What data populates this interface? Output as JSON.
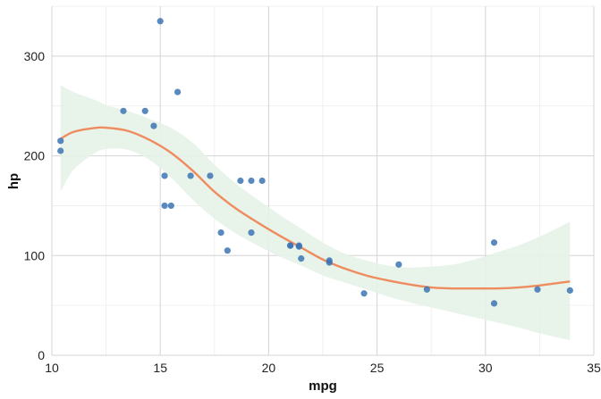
{
  "chart_data": {
    "type": "scatter",
    "title": "",
    "xlabel": "mpg",
    "ylabel": "hp",
    "xlim": [
      10,
      35
    ],
    "ylim": [
      0,
      350
    ],
    "x_ticks": [
      10,
      15,
      20,
      25,
      30,
      35
    ],
    "y_ticks": [
      0,
      100,
      200,
      300
    ],
    "x_tick_labels": [
      "10",
      "15",
      "20",
      "25",
      "30",
      "35"
    ],
    "y_tick_labels": [
      "0",
      "100",
      "200",
      "300"
    ],
    "grid": true,
    "legend": "none",
    "colors": {
      "points": "#3c74b4",
      "smooth_line": "#ef8c5f",
      "confidence_band": "#e6f2e8",
      "grid_major": "#d4d4d4",
      "grid_minor": "#ececec"
    },
    "points": [
      {
        "x": 21.0,
        "y": 110
      },
      {
        "x": 21.0,
        "y": 110
      },
      {
        "x": 22.8,
        "y": 93
      },
      {
        "x": 21.4,
        "y": 110
      },
      {
        "x": 18.7,
        "y": 175
      },
      {
        "x": 18.1,
        "y": 105
      },
      {
        "x": 14.3,
        "y": 245
      },
      {
        "x": 24.4,
        "y": 62
      },
      {
        "x": 22.8,
        "y": 95
      },
      {
        "x": 19.2,
        "y": 123
      },
      {
        "x": 17.8,
        "y": 123
      },
      {
        "x": 16.4,
        "y": 180
      },
      {
        "x": 17.3,
        "y": 180
      },
      {
        "x": 15.2,
        "y": 180
      },
      {
        "x": 10.4,
        "y": 205
      },
      {
        "x": 10.4,
        "y": 215
      },
      {
        "x": 14.7,
        "y": 230
      },
      {
        "x": 32.4,
        "y": 66
      },
      {
        "x": 30.4,
        "y": 52
      },
      {
        "x": 33.9,
        "y": 65
      },
      {
        "x": 21.5,
        "y": 97
      },
      {
        "x": 15.5,
        "y": 150
      },
      {
        "x": 15.2,
        "y": 150
      },
      {
        "x": 13.3,
        "y": 245
      },
      {
        "x": 19.2,
        "y": 175
      },
      {
        "x": 27.3,
        "y": 66
      },
      {
        "x": 26.0,
        "y": 91
      },
      {
        "x": 30.4,
        "y": 113
      },
      {
        "x": 15.8,
        "y": 264
      },
      {
        "x": 19.7,
        "y": 175
      },
      {
        "x": 15.0,
        "y": 335
      },
      {
        "x": 21.4,
        "y": 109
      }
    ],
    "smooth": {
      "x": [
        10.4,
        11.0,
        12.0,
        12.6,
        13.5,
        14.5,
        15.5,
        16.5,
        17.5,
        18.5,
        19.5,
        20.5,
        21.5,
        22.5,
        23.5,
        24.5,
        25.5,
        26.5,
        27.5,
        28.5,
        29.5,
        30.5,
        31.5,
        32.5,
        33.9
      ],
      "y": [
        217,
        224,
        228,
        228,
        225,
        216,
        203,
        185,
        164,
        147,
        133,
        120,
        108,
        96,
        87,
        80,
        75,
        71,
        68,
        67,
        67,
        67,
        68,
        70,
        74
      ],
      "lower": [
        164,
        186,
        203,
        207,
        206,
        196,
        178,
        156,
        137,
        122,
        110,
        99,
        90,
        80,
        73,
        66,
        59,
        53,
        48,
        43,
        38,
        33,
        28,
        22,
        15
      ],
      "upper": [
        271,
        264,
        256,
        250,
        245,
        237,
        228,
        213,
        191,
        172,
        156,
        141,
        127,
        113,
        102,
        95,
        90,
        88,
        89,
        91,
        96,
        103,
        110,
        119,
        134
      ]
    }
  }
}
